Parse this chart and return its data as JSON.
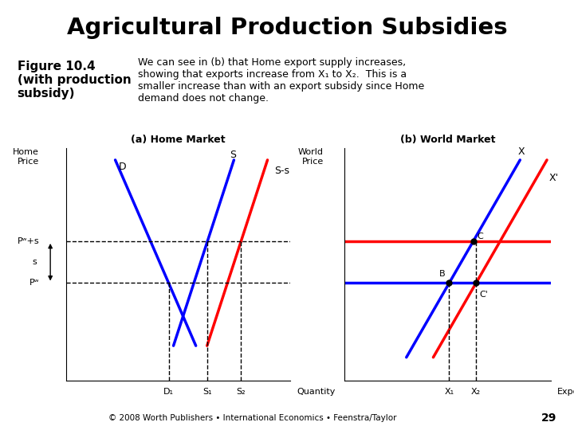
{
  "title": "Agricultural Production Subsidies",
  "title_bg_color": "#4472C4",
  "title_text_color": "black",
  "fig_bg_color": "#FFFFFF",
  "subtitle_line1": "Figure 10.4",
  "subtitle_line2": "(with production",
  "subtitle_line3": "subsidy)",
  "description": "We can see in (b) that Home export supply increases,\nshowing that exports increase from X₁ to X₂.  This is a\nsmaller increase than with an export subsidy since Home\ndemand does not change.",
  "panel_a_title": "(a) Home Market",
  "panel_b_title": "(b) World Market",
  "footer": "© 2008 Worth Publishers • International Economics • Feenstra/Taylor",
  "page_num": "29",
  "footer_bg": "#D0D0D0"
}
